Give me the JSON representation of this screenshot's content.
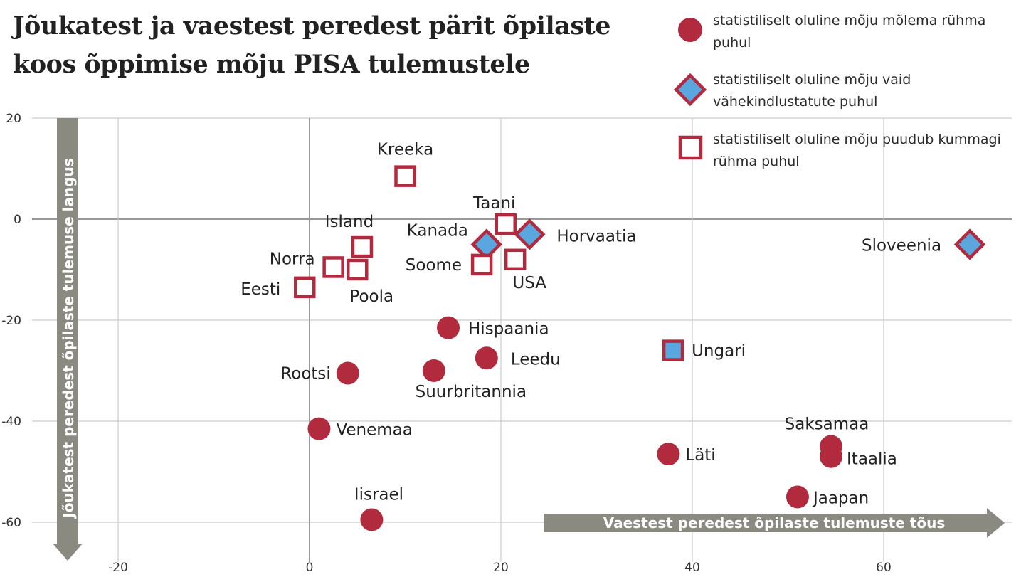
{
  "title": {
    "line1": "Jõukatest ja vaestest peredest pärit õpilaste",
    "line2": "koos õppimise mõju PISA tulemustele"
  },
  "legend": [
    {
      "marker": "circle",
      "text": "statistiliselt oluline mõju mõlema rühma puhul"
    },
    {
      "marker": "diamond",
      "text": "statistiliselt oluline mõju vaid vähekindlustatute puhul"
    },
    {
      "marker": "square",
      "text": "statistiliselt oluline mõju puudub kummagi rühma puhul"
    }
  ],
  "colors": {
    "marker_red": "#b22a3e",
    "marker_blue": "#5aa7e0",
    "arrow_gray": "#8a8a80",
    "grid": "#cccccc",
    "zero_line": "#999999"
  },
  "chart_data": {
    "type": "scatter",
    "title": "Jõukatest ja vaestest peredest pärit õpilaste koos õppimise mõju PISA tulemustele",
    "xlabel": "Vaestest peredest õpilaste tulemuste tõus",
    "ylabel": "Jõukatest peredest õpilaste tulemuse langus",
    "xlim": [
      -30,
      72
    ],
    "ylim": [
      -68,
      22
    ],
    "xticks": [
      -20,
      0,
      20,
      40,
      60
    ],
    "yticks": [
      20,
      0,
      -20,
      -40,
      -60
    ],
    "xtick_labels": [
      "-20",
      "0",
      "20",
      "40",
      "60"
    ],
    "ytick_labels": [
      "20",
      "0",
      "-20",
      "-40",
      "-60"
    ],
    "grid": true,
    "legend_position": "top-right",
    "points": [
      {
        "name": "Kreeka",
        "x": 10,
        "y": 8.5,
        "marker": "square"
      },
      {
        "name": "Taani",
        "x": 20.5,
        "y": -1,
        "marker": "square"
      },
      {
        "name": "Horvaatia",
        "x": 23,
        "y": -3,
        "marker": "diamond"
      },
      {
        "name": "Kanada",
        "x": 18.5,
        "y": -5,
        "marker": "diamond"
      },
      {
        "name": "Island",
        "x": 5.5,
        "y": -5.5,
        "marker": "square"
      },
      {
        "name": "Norra",
        "x": 2.5,
        "y": -9.5,
        "marker": "square"
      },
      {
        "name": "Poola",
        "x": 5,
        "y": -10,
        "marker": "square"
      },
      {
        "name": "Eesti",
        "x": -0.5,
        "y": -13.5,
        "marker": "square"
      },
      {
        "name": "Soome",
        "x": 18,
        "y": -9,
        "marker": "square"
      },
      {
        "name": "USA",
        "x": 21.5,
        "y": -8,
        "marker": "square"
      },
      {
        "name": "Sloveenia",
        "x": 69,
        "y": -5,
        "marker": "diamond"
      },
      {
        "name": "Hispaania",
        "x": 14.5,
        "y": -21.5,
        "marker": "circle"
      },
      {
        "name": "Leedu",
        "x": 18.5,
        "y": -27.5,
        "marker": "circle"
      },
      {
        "name": "Suurbritannia",
        "x": 13,
        "y": -30,
        "marker": "circle"
      },
      {
        "name": "Rootsi",
        "x": 4,
        "y": -30.5,
        "marker": "circle"
      },
      {
        "name": "Ungari",
        "x": 38,
        "y": -26,
        "marker": "square-filled"
      },
      {
        "name": "Venemaa",
        "x": 1,
        "y": -41.5,
        "marker": "circle"
      },
      {
        "name": "Saksamaa",
        "x": 54.5,
        "y": -45,
        "marker": "circle"
      },
      {
        "name": "Läti",
        "x": 37.5,
        "y": -46.5,
        "marker": "circle"
      },
      {
        "name": "Itaalia",
        "x": 54.5,
        "y": -47,
        "marker": "circle"
      },
      {
        "name": "Jaapan",
        "x": 51,
        "y": -55,
        "marker": "circle"
      },
      {
        "name": "Iisrael",
        "x": 6.5,
        "y": -59.5,
        "marker": "circle"
      }
    ]
  }
}
